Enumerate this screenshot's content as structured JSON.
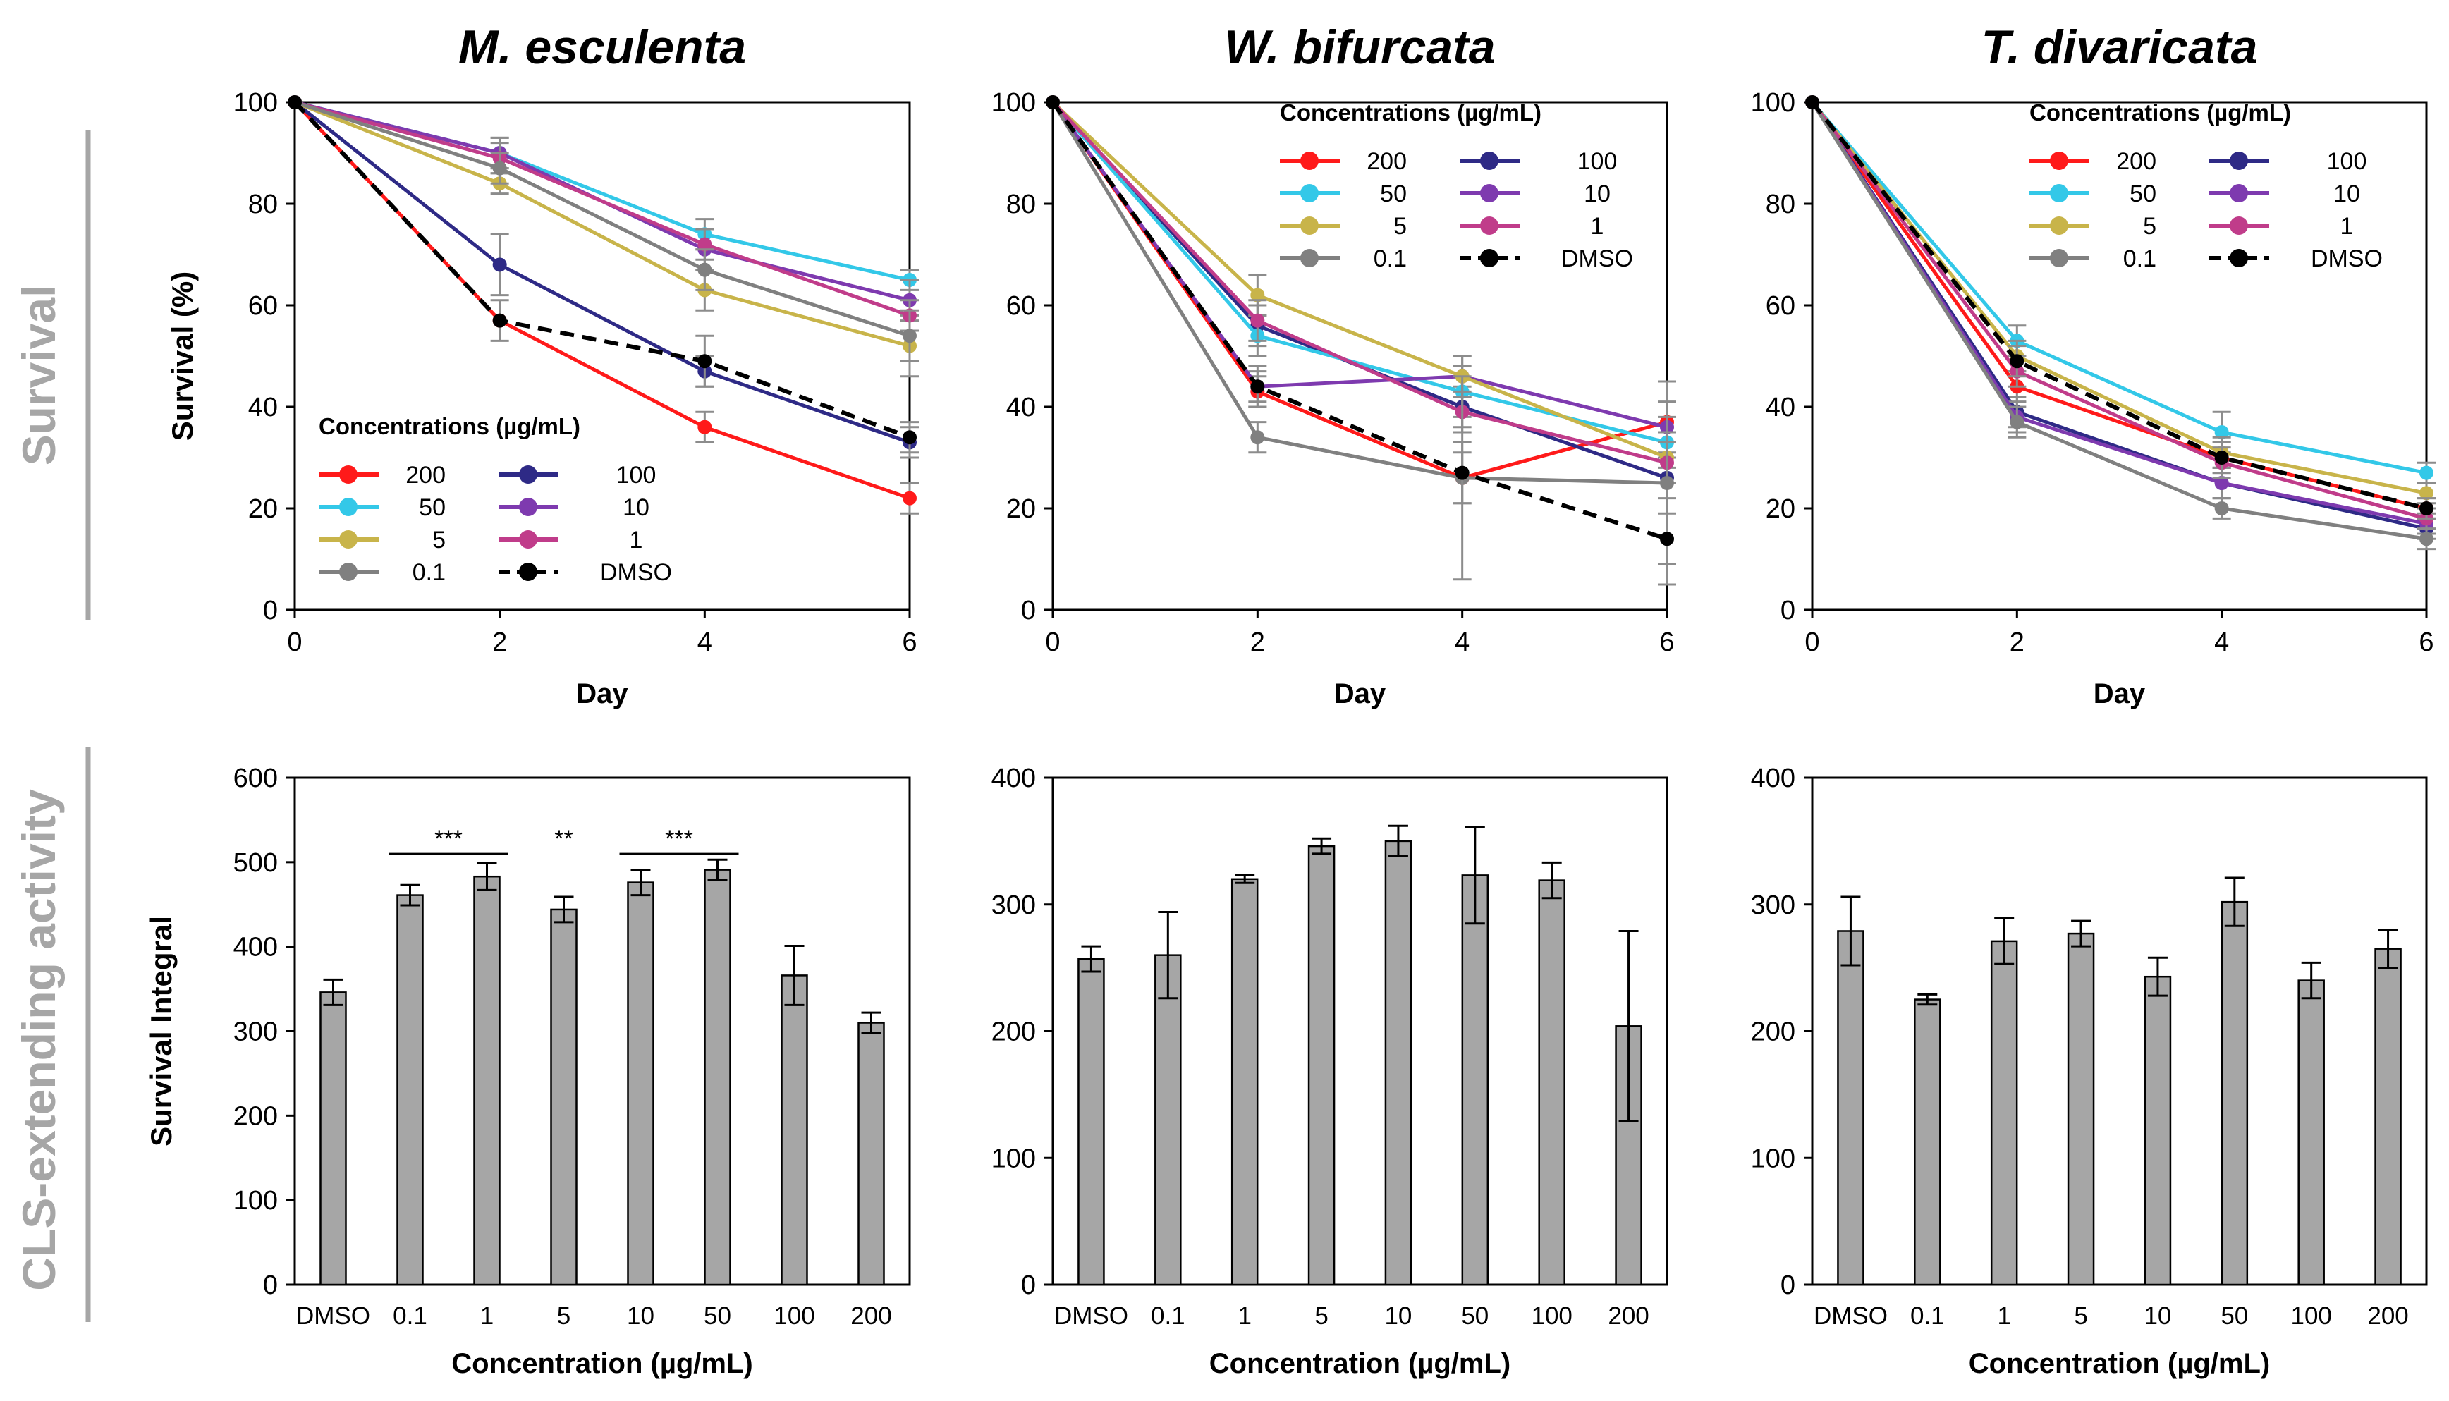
{
  "figure": {
    "row_labels": [
      "Survival",
      "CLS-extending activity"
    ],
    "colors": {
      "200": "#ff1a1a",
      "100": "#2e2a86",
      "50": "#33c8e8",
      "10": "#7e3aaf",
      "5": "#c8b44a",
      "1": "#c03c8a",
      "0.1": "#808080",
      "DMSO": "#000000",
      "bar_fill": "#a6a6a6",
      "axis": "#000000",
      "divider": "#a6a6a6",
      "row_label": "#a6a6a6"
    }
  },
  "chart_data": [
    {
      "type": "line",
      "title": "M. esculenta",
      "xlabel": "Day",
      "ylabel": "Survival (%)",
      "x": [
        0,
        2,
        4,
        6
      ],
      "xlim": [
        0,
        6
      ],
      "ylim": [
        0,
        100
      ],
      "yticks": [
        0,
        20,
        40,
        60,
        80,
        100
      ],
      "xticks": [
        0,
        2,
        4,
        6
      ],
      "legend": {
        "title": "Concentrations (µg/mL)",
        "placement": "bottom-left"
      },
      "series": [
        {
          "name": "200",
          "values": [
            100,
            57,
            36,
            22
          ],
          "errors": [
            0,
            0,
            3,
            3
          ]
        },
        {
          "name": "100",
          "values": [
            100,
            68,
            47,
            33
          ],
          "errors": [
            0,
            6,
            3,
            3
          ]
        },
        {
          "name": "50",
          "values": [
            100,
            90,
            74,
            65
          ],
          "errors": [
            0,
            3,
            3,
            2
          ]
        },
        {
          "name": "10",
          "values": [
            100,
            90,
            71,
            61
          ],
          "errors": [
            0,
            3,
            4,
            4
          ]
        },
        {
          "name": "5",
          "values": [
            100,
            84,
            63,
            52
          ],
          "errors": [
            0,
            2,
            4,
            6
          ]
        },
        {
          "name": "1",
          "values": [
            100,
            89,
            72,
            58
          ],
          "errors": [
            0,
            3,
            3,
            3
          ]
        },
        {
          "name": "0.1",
          "values": [
            100,
            87,
            67,
            54
          ],
          "errors": [
            0,
            3,
            4,
            5
          ]
        },
        {
          "name": "DMSO",
          "values": [
            100,
            57,
            49,
            34
          ],
          "errors": [
            0,
            4,
            5,
            3
          ],
          "dashed": true
        }
      ]
    },
    {
      "type": "line",
      "title": "W. bifurcata",
      "xlabel": "Day",
      "ylabel": "",
      "x": [
        0,
        2,
        4,
        6
      ],
      "xlim": [
        0,
        6
      ],
      "ylim": [
        0,
        100
      ],
      "yticks": [
        0,
        20,
        40,
        60,
        80,
        100
      ],
      "xticks": [
        0,
        2,
        4,
        6
      ],
      "legend": {
        "title": "Concentrations (µg/mL)",
        "placement": "top-right"
      },
      "series": [
        {
          "name": "200",
          "values": [
            100,
            43,
            26,
            37
          ],
          "errors": [
            0,
            3,
            5,
            4
          ]
        },
        {
          "name": "100",
          "values": [
            100,
            56,
            40,
            26
          ],
          "errors": [
            0,
            4,
            4,
            4
          ]
        },
        {
          "name": "50",
          "values": [
            100,
            54,
            43,
            33
          ],
          "errors": [
            0,
            4,
            5,
            5
          ]
        },
        {
          "name": "10",
          "values": [
            100,
            44,
            46,
            36
          ],
          "errors": [
            0,
            3,
            4,
            5
          ]
        },
        {
          "name": "5",
          "values": [
            100,
            62,
            46,
            30
          ],
          "errors": [
            0,
            4,
            4,
            5
          ]
        },
        {
          "name": "1",
          "values": [
            100,
            57,
            39,
            29
          ],
          "errors": [
            0,
            4,
            4,
            4
          ]
        },
        {
          "name": "0.1",
          "values": [
            100,
            34,
            26,
            25
          ],
          "errors": [
            0,
            3,
            20,
            20
          ]
        },
        {
          "name": "DMSO",
          "values": [
            100,
            44,
            27,
            14
          ],
          "errors": [
            0,
            4,
            6,
            5
          ],
          "dashed": true
        }
      ]
    },
    {
      "type": "line",
      "title": "T. divaricata",
      "xlabel": "Day",
      "ylabel": "",
      "x": [
        0,
        2,
        4,
        6
      ],
      "xlim": [
        0,
        6
      ],
      "ylim": [
        0,
        100
      ],
      "yticks": [
        0,
        20,
        40,
        60,
        80,
        100
      ],
      "xticks": [
        0,
        2,
        4,
        6
      ],
      "legend": {
        "title": "Concentrations (µg/mL)",
        "placement": "top-right"
      },
      "series": [
        {
          "name": "200",
          "values": [
            100,
            44,
            30,
            20
          ],
          "errors": [
            0,
            3,
            3,
            2
          ]
        },
        {
          "name": "100",
          "values": [
            100,
            39,
            25,
            16
          ],
          "errors": [
            0,
            3,
            3,
            2
          ]
        },
        {
          "name": "50",
          "values": [
            100,
            53,
            35,
            27
          ],
          "errors": [
            0,
            3,
            4,
            2
          ]
        },
        {
          "name": "10",
          "values": [
            100,
            38,
            25,
            17
          ],
          "errors": [
            0,
            3,
            3,
            2
          ]
        },
        {
          "name": "5",
          "values": [
            100,
            50,
            31,
            23
          ],
          "errors": [
            0,
            3,
            3,
            2
          ]
        },
        {
          "name": "1",
          "values": [
            100,
            47,
            29,
            18
          ],
          "errors": [
            0,
            3,
            3,
            2
          ]
        },
        {
          "name": "0.1",
          "values": [
            100,
            37,
            20,
            14
          ],
          "errors": [
            0,
            3,
            2,
            2
          ]
        },
        {
          "name": "DMSO",
          "values": [
            100,
            49,
            30,
            20
          ],
          "errors": [
            0,
            3,
            3,
            2
          ],
          "dashed": true
        }
      ]
    },
    {
      "type": "bar",
      "title": "",
      "xlabel": "Concentration (µg/mL)",
      "ylabel": "Survival Integral",
      "categories": [
        "DMSO",
        "0.1",
        "1",
        "5",
        "10",
        "50",
        "100",
        "200"
      ],
      "values": [
        346,
        461,
        483,
        444,
        476,
        491,
        366,
        310
      ],
      "errors": [
        15,
        12,
        16,
        15,
        15,
        12,
        35,
        12
      ],
      "ylim": [
        0,
        600
      ],
      "yticks": [
        0,
        100,
        200,
        300,
        400,
        500,
        600
      ],
      "annotations": [
        {
          "text": "***",
          "from": 1,
          "to": 2,
          "y": 510
        },
        {
          "text": "**",
          "from": 3,
          "to": 3,
          "y": 510
        },
        {
          "text": "***",
          "from": 4,
          "to": 5,
          "y": 510
        }
      ]
    },
    {
      "type": "bar",
      "title": "",
      "xlabel": "Concentration (µg/mL)",
      "ylabel": "",
      "categories": [
        "DMSO",
        "0.1",
        "1",
        "5",
        "10",
        "50",
        "100",
        "200"
      ],
      "values": [
        257,
        260,
        320,
        346,
        350,
        323,
        319,
        204
      ],
      "errors": [
        10,
        34,
        3,
        6,
        12,
        38,
        14,
        75
      ],
      "ylim": [
        0,
        400
      ],
      "yticks": [
        0,
        100,
        200,
        300,
        400
      ],
      "annotations": []
    },
    {
      "type": "bar",
      "title": "",
      "xlabel": "Concentration (µg/mL)",
      "ylabel": "",
      "categories": [
        "DMSO",
        "0.1",
        "1",
        "5",
        "10",
        "50",
        "100",
        "200"
      ],
      "values": [
        279,
        225,
        271,
        277,
        243,
        302,
        240,
        265
      ],
      "errors": [
        27,
        4,
        18,
        10,
        15,
        19,
        14,
        15
      ],
      "ylim": [
        0,
        400
      ],
      "yticks": [
        0,
        100,
        200,
        300,
        400
      ],
      "annotations": []
    }
  ]
}
